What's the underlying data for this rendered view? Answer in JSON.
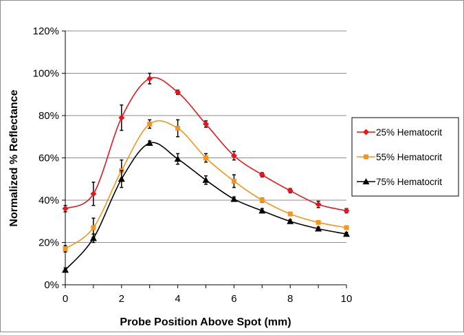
{
  "chart_data": {
    "type": "line",
    "title": "",
    "xlabel": "Probe Position Above Spot (mm)",
    "ylabel": "Normalized % Reflectance",
    "xlim": [
      0,
      10
    ],
    "ylim": [
      0,
      120
    ],
    "x_ticks": [
      "0",
      "2",
      "4",
      "6",
      "8",
      "10"
    ],
    "y_ticks": [
      "0%",
      "20%",
      "40%",
      "60%",
      "80%",
      "100%",
      "120%"
    ],
    "grid": "horizontal",
    "legend_position": "right",
    "x": [
      0,
      1,
      2,
      3,
      4,
      5,
      6,
      7,
      8,
      9,
      10
    ],
    "series": [
      {
        "name": "25% Hematocrit",
        "color": "#e8141b",
        "marker": "diamond",
        "values": [
          36,
          43,
          79,
          97.5,
          91,
          76,
          61,
          52,
          44.5,
          38,
          35
        ],
        "errors": [
          1.5,
          5.5,
          6,
          2.5,
          1,
          1.5,
          2,
          1,
          1,
          1.5,
          1
        ]
      },
      {
        "name": "55% Hematocrit",
        "color": "#f7941d",
        "marker": "square",
        "values": [
          17,
          27,
          54,
          76,
          74,
          60,
          49,
          40,
          33.5,
          29.5,
          27
        ],
        "errors": [
          1.5,
          4.5,
          5,
          2,
          4,
          2,
          3,
          1,
          0.8,
          0.8,
          0.8
        ]
      },
      {
        "name": "75% Hematocrit",
        "color": "#000000",
        "marker": "triangle",
        "values": [
          7,
          22,
          50,
          67,
          59.5,
          49.5,
          40.5,
          35,
          30,
          26.5,
          24
        ],
        "errors": [
          1,
          2,
          4,
          1,
          2.5,
          2,
          1,
          1,
          0.8,
          0.8,
          0.8
        ]
      }
    ]
  }
}
